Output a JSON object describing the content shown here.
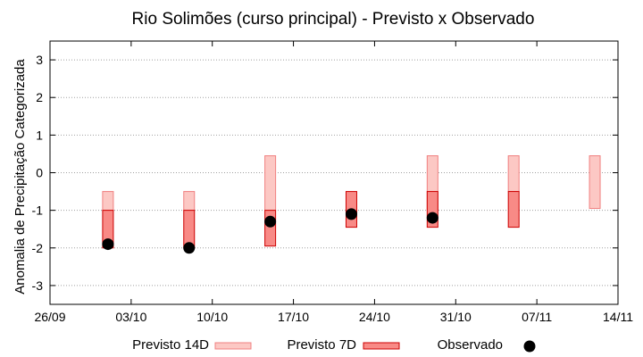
{
  "chart_data": {
    "type": "range-bar",
    "title": "Rio Solimões (curso principal) - Previsto x Observado",
    "xlabel": "",
    "ylabel": "Anomalia de Precipitação Categorizada",
    "x_axis": {
      "type": "date",
      "range": [
        "2023-09-26",
        "2023-11-14"
      ],
      "tick_dates": [
        "2023-09-26",
        "2023-10-03",
        "2023-10-10",
        "2023-10-17",
        "2023-10-24",
        "2023-10-31",
        "2023-11-07",
        "2023-11-14"
      ],
      "tick_labels": [
        "26/09",
        "03/10",
        "10/10",
        "17/10",
        "24/10",
        "31/10",
        "07/11",
        "14/11"
      ]
    },
    "y_axis": {
      "range": [
        -3.5,
        3.5
      ],
      "ticks": [
        -3,
        -2,
        -1,
        0,
        1,
        2,
        3
      ],
      "tick_labels": [
        "-3",
        "-2",
        "-1",
        "0",
        "1",
        "2",
        "3"
      ]
    },
    "grid": true,
    "legend_position": "bottom",
    "series": [
      {
        "name": "Previsto 14D",
        "color_fill": "#fcc8c4",
        "color_edge": "#f08080",
        "points": [
          {
            "date": "2023-10-01",
            "low": -1.0,
            "high": -0.5
          },
          {
            "date": "2023-10-08",
            "low": -1.0,
            "high": -0.5
          },
          {
            "date": "2023-10-15",
            "low": -1.0,
            "high": 0.45
          },
          {
            "date": "2023-10-29",
            "low": -1.0,
            "high": 0.45
          },
          {
            "date": "2023-11-05",
            "low": -0.5,
            "high": 0.45
          },
          {
            "date": "2023-11-12",
            "low": -0.95,
            "high": 0.45
          }
        ]
      },
      {
        "name": "Previsto 7D",
        "color_fill": "#f88a86",
        "color_edge": "#cc0000",
        "points": [
          {
            "date": "2023-10-01",
            "low": -2.0,
            "high": -1.0
          },
          {
            "date": "2023-10-08",
            "low": -2.0,
            "high": -1.0
          },
          {
            "date": "2023-10-15",
            "low": -1.95,
            "high": -1.0
          },
          {
            "date": "2023-10-22",
            "low": -1.45,
            "high": -0.5
          },
          {
            "date": "2023-10-29",
            "low": -1.45,
            "high": -0.5
          },
          {
            "date": "2023-11-05",
            "low": -1.45,
            "high": -0.5
          }
        ]
      },
      {
        "name": "Observado",
        "color": "#000000",
        "points": [
          {
            "date": "2023-10-01",
            "value": -1.9
          },
          {
            "date": "2023-10-08",
            "value": -2.0
          },
          {
            "date": "2023-10-15",
            "value": -1.3
          },
          {
            "date": "2023-10-22",
            "value": -1.1
          },
          {
            "date": "2023-10-29",
            "value": -1.2
          }
        ]
      }
    ]
  }
}
